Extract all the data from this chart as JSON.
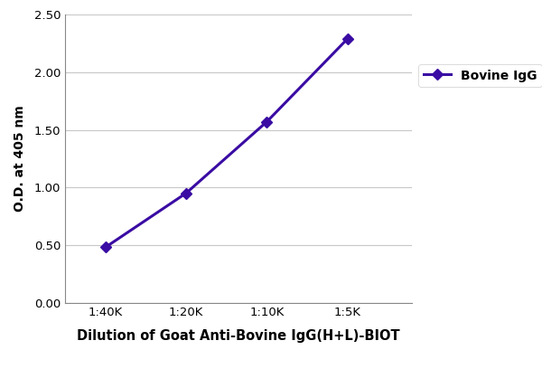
{
  "x_labels": [
    "1:40K",
    "1:20K",
    "1:10K",
    "1:5K"
  ],
  "x_values": [
    1,
    2,
    3,
    4
  ],
  "y_values": [
    0.48,
    0.95,
    1.57,
    2.29
  ],
  "line_color": "#3a0ca3",
  "marker_style": "D",
  "marker_size": 6,
  "marker_facecolor": "#3a0ca3",
  "line_width": 2.2,
  "xlabel": "Dilution of Goat Anti-Bovine IgG(H+L)-BIOT",
  "ylabel": "O.D. at 405 nm",
  "ylim": [
    0.0,
    2.5
  ],
  "yticks": [
    0.0,
    0.5,
    1.0,
    1.5,
    2.0,
    2.5
  ],
  "legend_label": "Bovine IgG",
  "background_color": "#ffffff",
  "xlabel_fontsize": 10.5,
  "ylabel_fontsize": 10,
  "tick_fontsize": 9.5,
  "legend_fontsize": 10
}
